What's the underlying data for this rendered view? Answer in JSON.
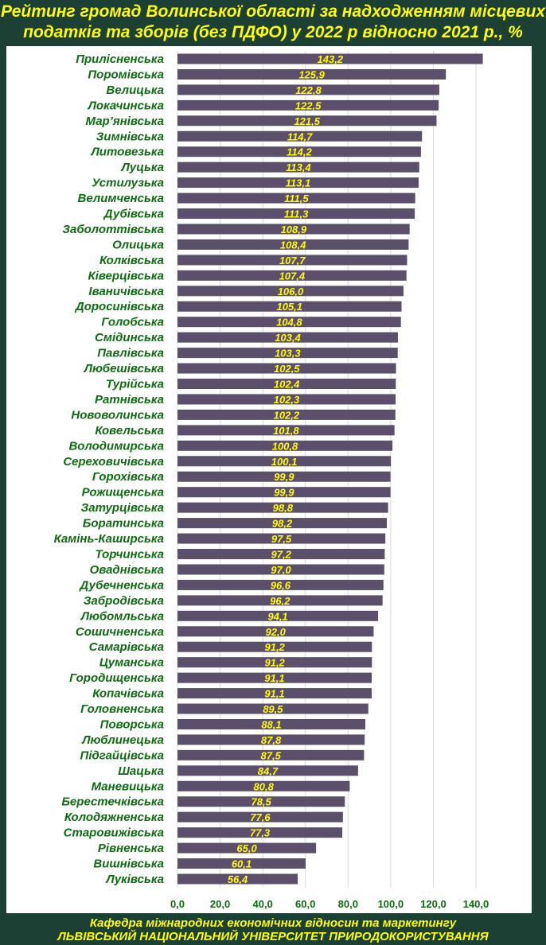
{
  "chart_data": {
    "type": "bar",
    "orientation": "horizontal",
    "title": "Рейтинг громад Волинської області за надходженням місцевих податків та зборів (без ПДФО) у 2022 р відносно 2021 р., %",
    "title_lines": [
      "Рейтинг громад Волинської області за надходженням місцевих",
      "податків та зборів (без ПДФО) у 2022 р відносно 2021 р., %"
    ],
    "categories": [
      "Прилісненська",
      "Поромівська",
      "Велицька",
      "Локачинська",
      "Мар’янівська",
      "Зимнівська",
      "Литовезька",
      "Луцька",
      "Устилузька",
      "Велимченська",
      "Дубівська",
      "Заболоттівська",
      "Олицька",
      "Колківська",
      "Ківерцівська",
      "Іваничівська",
      "Доросинівська",
      "Голобська",
      "Смідинська",
      "Павлівська",
      "Любешівська",
      "Турійська",
      "Ратнівська",
      "Нововолинська",
      "Ковельська",
      "Володимирська",
      "Сереховичівська",
      "Горохівська",
      "Рожищенська",
      "Затурцівська",
      "Боратинська",
      "Камінь-Каширська",
      "Торчинська",
      "Оваднівська",
      "Дубечненська",
      "Забродівська",
      "Любомльська",
      "Сошичненська",
      "Самарівська",
      "Цуманська",
      "Городищенська",
      "Копачівська",
      "Головненська",
      "Поворська",
      "Люблинецька",
      "Підгайцівська",
      "Шацька",
      "Маневицька",
      "Берестечківська",
      "Колодяжненська",
      "Старовижівська",
      "Рівненська",
      "Вишнівська",
      "Луківська"
    ],
    "values": [
      143.2,
      125.9,
      122.8,
      122.5,
      121.5,
      114.7,
      114.2,
      113.4,
      113.1,
      111.5,
      111.3,
      108.9,
      108.4,
      107.7,
      107.4,
      106.0,
      105.1,
      104.8,
      103.4,
      103.3,
      102.5,
      102.4,
      102.3,
      102.2,
      101.8,
      100.8,
      100.1,
      99.9,
      99.9,
      98.8,
      98.2,
      97.5,
      97.2,
      97.0,
      96.6,
      96.2,
      94.1,
      92.0,
      91.2,
      91.2,
      91.1,
      91.1,
      89.5,
      88.1,
      87.8,
      87.5,
      84.7,
      80.8,
      78.5,
      77.6,
      77.3,
      65.0,
      60.1,
      56.4
    ],
    "value_labels": [
      "143,2",
      "125,9",
      "122,8",
      "122,5",
      "121,5",
      "114,7",
      "114,2",
      "113,4",
      "113,1",
      "111,5",
      "111,3",
      "108,9",
      "108,4",
      "107,7",
      "107,4",
      "106,0",
      "105,1",
      "104,8",
      "103,4",
      "103,3",
      "102,5",
      "102,4",
      "102,3",
      "102,2",
      "101,8",
      "100,8",
      "100,1",
      "99,9",
      "99,9",
      "98,8",
      "98,2",
      "97,5",
      "97,2",
      "97,0",
      "96,6",
      "96,2",
      "94,1",
      "92,0",
      "91,2",
      "91,2",
      "91,1",
      "91,1",
      "89,5",
      "88,1",
      "87,8",
      "87,5",
      "84,7",
      "80,8",
      "78,5",
      "77,6",
      "77,3",
      "65,0",
      "60,1",
      "56,4"
    ],
    "xticks": [
      0,
      20,
      40,
      60,
      80,
      100,
      120,
      140
    ],
    "xtick_labels": [
      "0,0",
      "20,0",
      "40,0",
      "60,0",
      "80,0",
      "100,0",
      "120,0",
      "140,0"
    ],
    "xlim": [
      0,
      150
    ],
    "xlabel": "",
    "ylabel": "",
    "grid": true,
    "legend": "none"
  },
  "colors": {
    "bar": "#5c4f6b",
    "background": "#1c4034",
    "title": "#ffff00",
    "labels": "#0e6b12"
  },
  "footer": {
    "line1": "Кафедра міжнародних економічних відносин та маркетингу",
    "line2": "ЛЬВІВСЬКИЙ НАЦІОНАЛЬНИЙ УНІВЕРСИТЕТ ПРИРОДОКОРИСТУВАННЯ"
  }
}
